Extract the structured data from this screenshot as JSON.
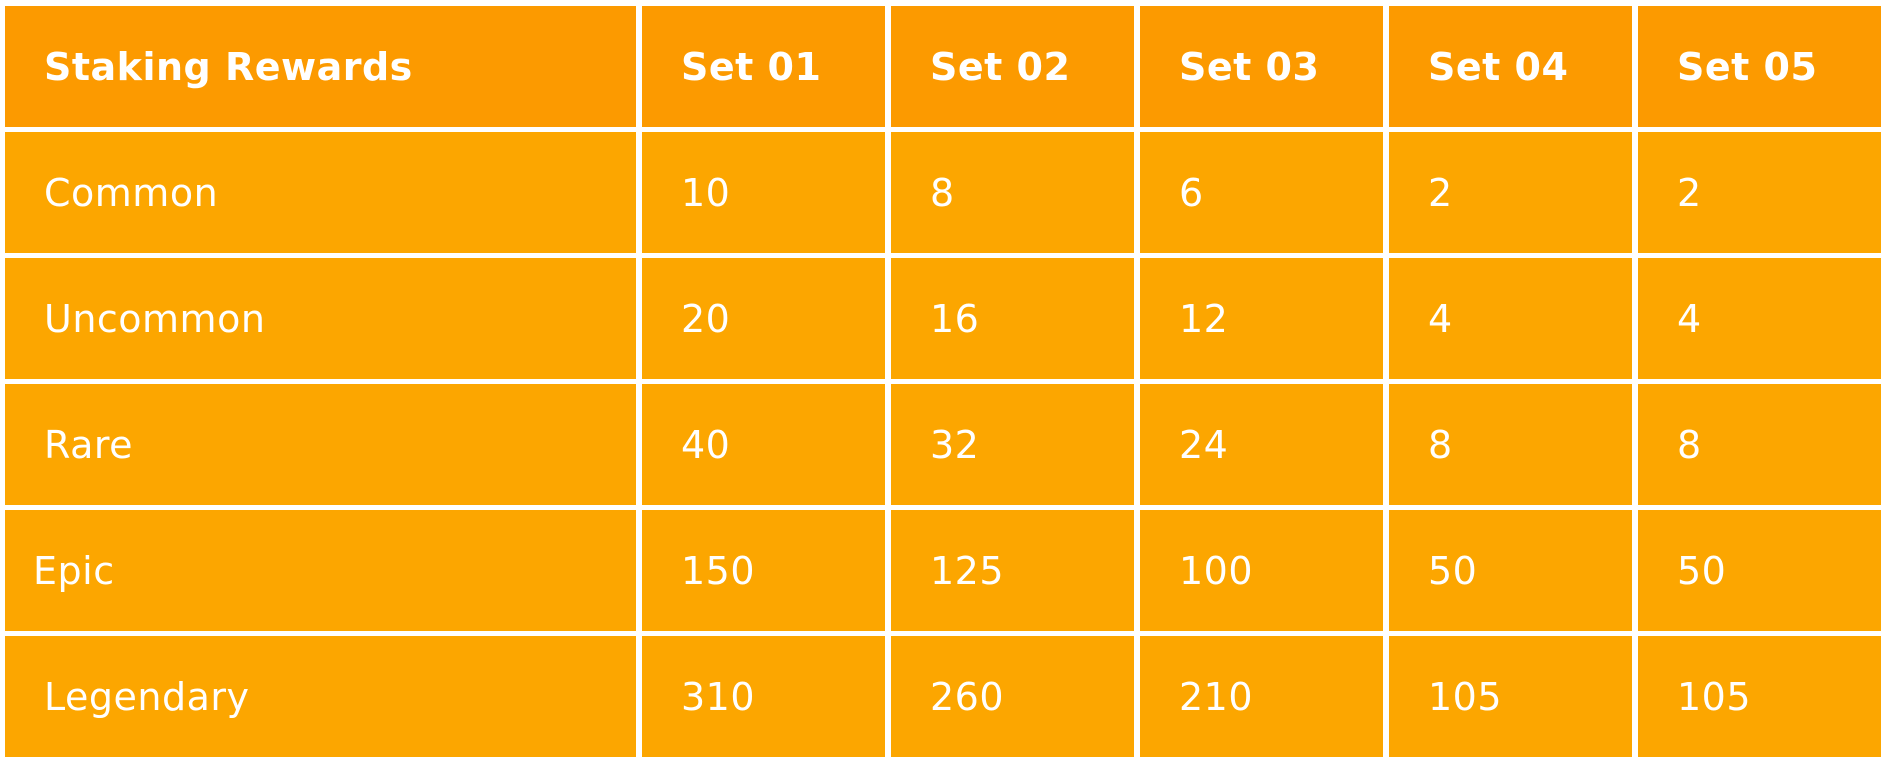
{
  "colors": {
    "header_bg": "#fc9a00",
    "cell_bg": "#fca600",
    "text": "#ffffff",
    "grid_lines": "#ffffff"
  },
  "table": {
    "columns": [
      "Staking Rewards",
      "Set 01",
      "Set 02",
      "Set 03",
      "Set 04",
      "Set 05"
    ],
    "rows": [
      {
        "label": "Common",
        "values": [
          "10",
          "8",
          "6",
          "2",
          "2"
        ]
      },
      {
        "label": "Uncommon",
        "values": [
          "20",
          "16",
          "12",
          "4",
          "4"
        ]
      },
      {
        "label": "Rare",
        "values": [
          "40",
          "32",
          "24",
          "8",
          "8"
        ]
      },
      {
        "label": "Epic",
        "values": [
          "150",
          "125",
          "100",
          "50",
          "50"
        ]
      },
      {
        "label": "Legendary",
        "values": [
          "310",
          "260",
          "210",
          "105",
          "105"
        ]
      }
    ]
  }
}
